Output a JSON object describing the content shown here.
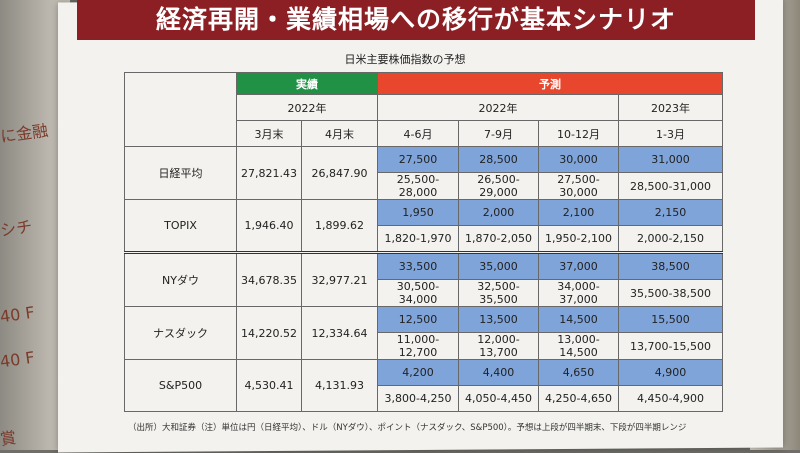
{
  "banner": "経済再開・業績相場への移行が基本シナリオ",
  "subtitle": "日米主要株価指数の予想",
  "table": {
    "actual_label": "実績",
    "forecast_label": "予測",
    "year_2022_actual": "2022年",
    "year_2022_forecast": "2022年",
    "year_2023_forecast": "2023年",
    "columns": [
      "3月末",
      "4月末",
      "4-6月",
      "7-9月",
      "10-12月",
      "1-3月"
    ],
    "rows": [
      {
        "name": "日経平均",
        "actual": [
          "27,821.43",
          "26,847.90"
        ],
        "forecast": [
          "27,500",
          "28,500",
          "30,000",
          "31,000"
        ],
        "range": [
          "25,500-28,000",
          "26,500-29,000",
          "27,500-30,000",
          "28,500-31,000"
        ]
      },
      {
        "name": "TOPIX",
        "actual": [
          "1,946.40",
          "1,899.62"
        ],
        "forecast": [
          "1,950",
          "2,000",
          "2,100",
          "2,150"
        ],
        "range": [
          "1,820-1,970",
          "1,870-2,050",
          "1,950-2,100",
          "2,000-2,150"
        ]
      },
      {
        "name": "NYダウ",
        "actual": [
          "34,678.35",
          "32,977.21"
        ],
        "forecast": [
          "33,500",
          "35,000",
          "37,000",
          "38,500"
        ],
        "range": [
          "30,500-34,000",
          "32,500-35,500",
          "34,000-37,000",
          "35,500-38,500"
        ]
      },
      {
        "name": "ナスダック",
        "actual": [
          "14,220.52",
          "12,334.64"
        ],
        "forecast": [
          "12,500",
          "13,500",
          "14,500",
          "15,500"
        ],
        "range": [
          "11,000-12,700",
          "12,000-13,700",
          "13,000-14,500",
          "13,700-15,500"
        ]
      },
      {
        "name": "S&P500",
        "actual": [
          "4,530.41",
          "4,131.93"
        ],
        "forecast": [
          "4,200",
          "4,400",
          "4,650",
          "4,900"
        ],
        "range": [
          "3,800-4,250",
          "4,050-4,450",
          "4,250-4,650",
          "4,450-4,900"
        ]
      }
    ]
  },
  "note": "（出所）大和証券（注）単位は円（日経平均）、ドル（NYダウ）、ポイント（ナスダック、S&P500）。予想は上段が四半期末、下段が四半期レンジ",
  "background": {
    "left_text_1": "に金融",
    "left_text_2": "シチ",
    "left_text_3": "40 F",
    "left_text_4": "40 F",
    "left_text_5": "賞"
  },
  "colors": {
    "banner": "#8b1f24",
    "actual_header": "#209145",
    "forecast_header": "#e8472d",
    "forecast_cell": "#7fa4d9"
  }
}
